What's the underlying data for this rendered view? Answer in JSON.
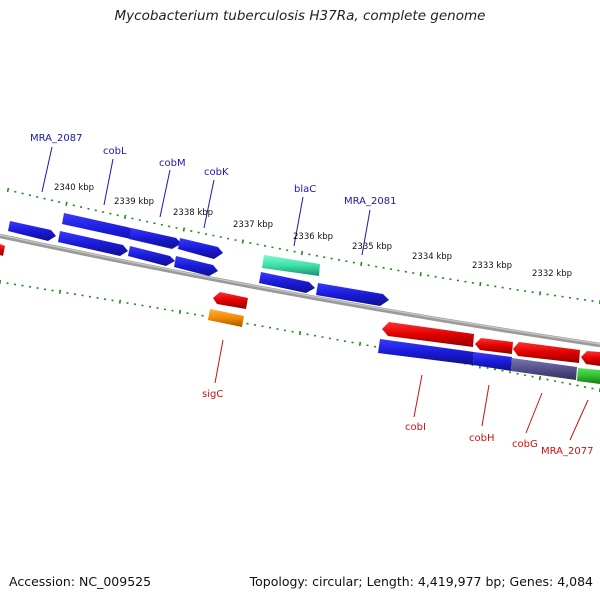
{
  "title": "Mycobacterium tuberculosis H37Ra, complete genome",
  "footer": {
    "accession": "Accession: NC_009525",
    "topology": "Topology: circular; Length: 4,419,977 bp; Genes: 4,084"
  },
  "scale_ticks": [
    "2340 kbp",
    "2339 kbp",
    "2338 kbp",
    "2337 kbp",
    "2336 kbp",
    "2335 kbp",
    "2334 kbp",
    "2333 kbp",
    "2332 kbp"
  ],
  "genes_top": [
    "MRA_2087",
    "cobL",
    "cobM",
    "cobK",
    "blaC",
    "MRA_2081"
  ],
  "genes_bottom": [
    "sigC",
    "cobI",
    "cobH",
    "cobG",
    "MRA_2077"
  ],
  "colors": {
    "forward_gene": "#1a1adf",
    "reverse_gene": "#e00000",
    "blaC": "#3fe0a8",
    "sigC": "#f08a00",
    "cobG": "#55508a",
    "MRA_2077": "#2ec02e",
    "backbone": "#8a8a8a",
    "tick": "#1e8a1e"
  }
}
